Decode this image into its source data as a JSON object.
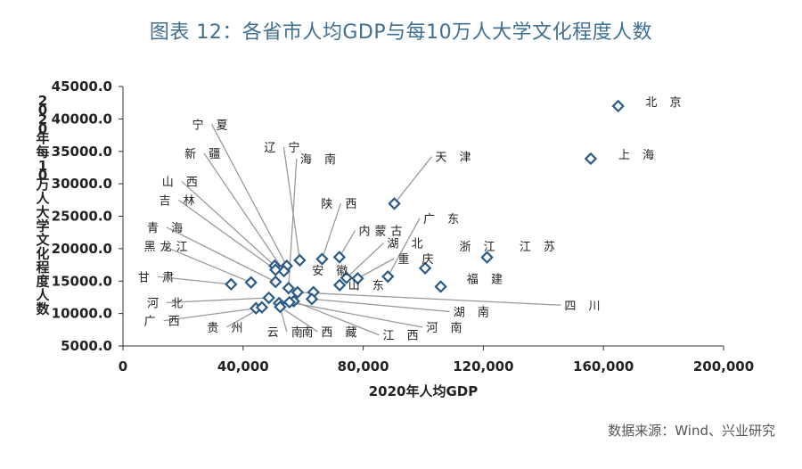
{
  "header": {
    "title": "图表 12：各省市人均GDP与每10万人大学文化程度人数",
    "source": "数据来源：Wind、兴业研究"
  },
  "chart_data": {
    "type": "scatter",
    "title": "图表 12：各省市人均GDP与每10万人大学文化程度人数",
    "xlabel": "2020年人均GDP",
    "ylabel": "2020年每10万人大学文化程度人数",
    "xlim": [
      0,
      200000
    ],
    "ylim": [
      5000,
      45000
    ],
    "xticks": [
      "0",
      "40,000",
      "80,000",
      "120,000",
      "160,000",
      "200,000"
    ],
    "xtick_values": [
      0,
      40000,
      80000,
      120000,
      160000,
      200000
    ],
    "yticks": [
      "5000.0",
      "10000.0",
      "15000.0",
      "20000.0",
      "25000.0",
      "30000.0",
      "35000.0",
      "40000.0",
      "45000.0"
    ],
    "ytick_values": [
      5000,
      10000,
      15000,
      20000,
      25000,
      30000,
      35000,
      40000,
      45000
    ],
    "grid": false,
    "marker_color": "#2b5b84",
    "leader_color": "#9a9a9a",
    "points": [
      {
        "label": "北 京",
        "x": 164889,
        "y": 41980,
        "lx": 174000,
        "ly": 41980,
        "leader": false
      },
      {
        "label": "上 海",
        "x": 155768,
        "y": 33872,
        "lx": 165000,
        "ly": 33872,
        "leader": false
      },
      {
        "label": "天 津",
        "x": 90371,
        "y": 26940,
        "lx": 104000,
        "ly": 33500,
        "leader": true
      },
      {
        "label": "江 苏",
        "x": 121231,
        "y": 18663,
        "lx": 132000,
        "ly": 19700,
        "leader": false
      },
      {
        "label": "浙 江",
        "x": 100620,
        "y": 16990,
        "lx": 112000,
        "ly": 19700,
        "leader": false
      },
      {
        "label": "福 建",
        "x": 105818,
        "y": 14148,
        "lx": 114500,
        "ly": 14700,
        "leader": false
      },
      {
        "label": "广 东",
        "x": 88210,
        "y": 15699,
        "lx": 100000,
        "ly": 24000,
        "leader": true
      },
      {
        "label": "内蒙古",
        "x": 72062,
        "y": 18688,
        "lx": 78500,
        "ly": 22100,
        "leader": true
      },
      {
        "label": "湖 北",
        "x": 74440,
        "y": 15502,
        "lx": 88000,
        "ly": 20200,
        "leader": true
      },
      {
        "label": "重 庆",
        "x": 78170,
        "y": 15412,
        "lx": 91500,
        "ly": 17800,
        "leader": true
      },
      {
        "label": "陕 西",
        "x": 66292,
        "y": 18397,
        "lx": 66000,
        "ly": 26300,
        "leader": true
      },
      {
        "label": "海 南",
        "x": 55131,
        "y": 13919,
        "lx": 59000,
        "ly": 33200,
        "leader": true
      },
      {
        "label": "辽 宁",
        "x": 58872,
        "y": 18216,
        "lx": 47000,
        "ly": 35000,
        "leader": true
      },
      {
        "label": "宁 夏",
        "x": 54528,
        "y": 17340,
        "lx": 23000,
        "ly": 38500,
        "leader": true
      },
      {
        "label": "新 疆",
        "x": 53593,
        "y": 16536,
        "lx": 20500,
        "ly": 34000,
        "leader": true
      },
      {
        "label": "山 西",
        "x": 50528,
        "y": 17358,
        "lx": 13000,
        "ly": 29700,
        "leader": true
      },
      {
        "label": "吉 林",
        "x": 50800,
        "y": 16738,
        "lx": 12000,
        "ly": 26800,
        "leader": true
      },
      {
        "label": "青 海",
        "x": 50819,
        "y": 14880,
        "lx": 8000,
        "ly": 22600,
        "leader": true
      },
      {
        "label": "黑龙江",
        "x": 42635,
        "y": 14793,
        "lx": 7000,
        "ly": 19700,
        "leader": true
      },
      {
        "label": "甘 肃",
        "x": 35995,
        "y": 14506,
        "lx": 5000,
        "ly": 15000,
        "leader": true
      },
      {
        "label": "安 徽",
        "x": 63426,
        "y": 13280,
        "lx": 63000,
        "ly": 16000,
        "leader": false
      },
      {
        "label": "山 东",
        "x": 72151,
        "y": 14384,
        "lx": 75000,
        "ly": 13700,
        "leader": false
      },
      {
        "label": "河 北",
        "x": 48564,
        "y": 12418,
        "lx": 8000,
        "ly": 11000,
        "leader": true
      },
      {
        "label": "广 西",
        "x": 44309,
        "y": 10806,
        "lx": 7000,
        "ly": 8200,
        "leader": true
      },
      {
        "label": "贵 州",
        "x": 46267,
        "y": 10952,
        "lx": 28000,
        "ly": 7200,
        "leader": true
      },
      {
        "label": "云 南",
        "x": 51975,
        "y": 11601,
        "lx": 48000,
        "ly": 6500,
        "leader": true
      },
      {
        "label": "西 藏",
        "x": 52345,
        "y": 11019,
        "lx": 66000,
        "ly": 6500,
        "leader": true
      },
      {
        "label": "江 西",
        "x": 56871,
        "y": 11897,
        "lx": 86500,
        "ly": 6000,
        "leader": true
      },
      {
        "label": "河 南",
        "x": 55435,
        "y": 11744,
        "lx": 101000,
        "ly": 7200,
        "leader": true
      },
      {
        "label": "湖 南",
        "x": 62900,
        "y": 12239,
        "lx": 110000,
        "ly": 9600,
        "leader": true
      },
      {
        "label": "四 川",
        "x": 58126,
        "y": 13267,
        "lx": 147000,
        "ly": 10600,
        "leader": true
      },
      {
        "label": "南",
        "x": 50500,
        "y": 11200,
        "lx": 59500,
        "ly": 6500,
        "leader": false
      }
    ]
  }
}
